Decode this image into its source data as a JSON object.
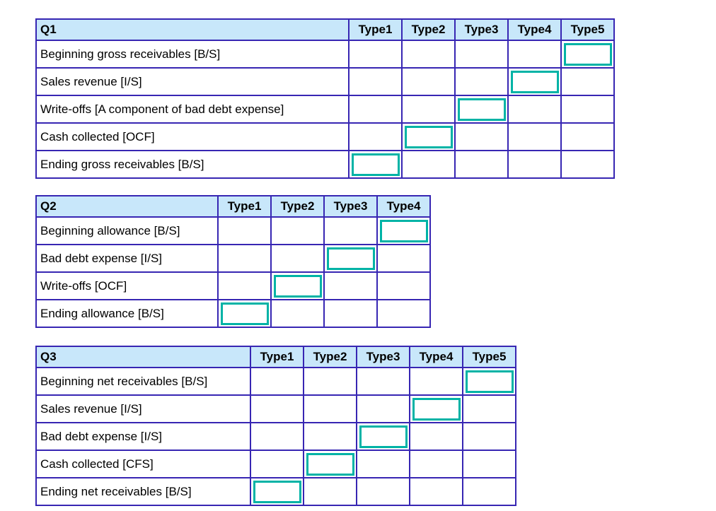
{
  "colors": {
    "page_bg": "#ffffff",
    "table_border": "#3726b3",
    "header_bg": "#c8e7fa",
    "input_border": "#00b3a6",
    "text": "#000000"
  },
  "input_value": "",
  "tables": [
    {
      "title": "Q1",
      "columns": [
        "Type1",
        "Type2",
        "Type3",
        "Type4",
        "Type5"
      ],
      "rows": [
        {
          "label": "Beginning gross receivables [B/S]",
          "input_col": 5
        },
        {
          "label": "Sales revenue [I/S]",
          "input_col": 4
        },
        {
          "label": "Write-offs [A component of bad debt expense]",
          "input_col": 3
        },
        {
          "label": "Cash collected [OCF]",
          "input_col": 2
        },
        {
          "label": "Ending gross receivables [B/S]",
          "input_col": 1
        }
      ]
    },
    {
      "title": "Q2",
      "columns": [
        "Type1",
        "Type2",
        "Type3",
        "Type4"
      ],
      "rows": [
        {
          "label": "Beginning allowance [B/S]",
          "input_col": 4
        },
        {
          "label": "Bad debt expense [I/S]",
          "input_col": 3
        },
        {
          "label": "Write-offs [OCF]",
          "input_col": 2
        },
        {
          "label": "Ending allowance [B/S]",
          "input_col": 1
        }
      ]
    },
    {
      "title": "Q3",
      "columns": [
        "Type1",
        "Type2",
        "Type3",
        "Type4",
        "Type5"
      ],
      "rows": [
        {
          "label": "Beginning net receivables [B/S]",
          "input_col": 5
        },
        {
          "label": "Sales revenue [I/S]",
          "input_col": 4
        },
        {
          "label": "Bad debt expense [I/S]",
          "input_col": 3
        },
        {
          "label": "Cash collected [CFS]",
          "input_col": 2
        },
        {
          "label": "Ending net receivables [B/S]",
          "input_col": 1
        }
      ]
    }
  ]
}
